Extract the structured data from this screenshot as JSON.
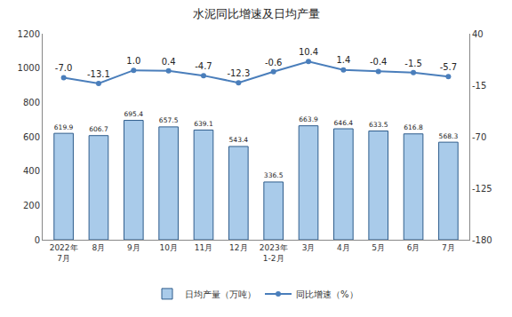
{
  "chart_data": {
    "type": "bar",
    "title": "水泥同比增速及日均产量",
    "categories": [
      "2022年7月",
      "8月",
      "9月",
      "10月",
      "11月",
      "12月",
      "2023年1-2月",
      "3月",
      "4月",
      "5月",
      "6月",
      "7月"
    ],
    "series": [
      {
        "name": "日均产量（万吨）",
        "type": "bar",
        "color": "#a9cbea",
        "values": [
          619.9,
          606.7,
          695.4,
          657.5,
          639.1,
          543.4,
          336.5,
          663.9,
          646.4,
          633.5,
          616.8,
          568.3
        ]
      },
      {
        "name": "同比增速（%）",
        "type": "line",
        "axis": "y2",
        "color": "#4a7ebb",
        "marker": "circle",
        "values": [
          -7.0,
          -13.1,
          1.0,
          0.4,
          -4.7,
          -12.3,
          -0.6,
          10.4,
          1.4,
          -0.4,
          -1.5,
          -5.7
        ],
        "value_labels": [
          "-7.0",
          "-13.1",
          "1.0",
          "0.4",
          "-4.7",
          "-12.3",
          "-0.6",
          "10.4",
          "1.4",
          "-0.4",
          "-1.5",
          "-5.7"
        ]
      }
    ],
    "ylim": [
      0,
      1200
    ],
    "yticks": [
      0,
      200,
      400,
      600,
      800,
      1000,
      1200
    ],
    "y2lim": [
      -180,
      40
    ],
    "y2ticks": [
      -180,
      -125,
      -70,
      -15,
      40
    ],
    "data_labels": true,
    "grid": false,
    "legend": "bottom"
  }
}
